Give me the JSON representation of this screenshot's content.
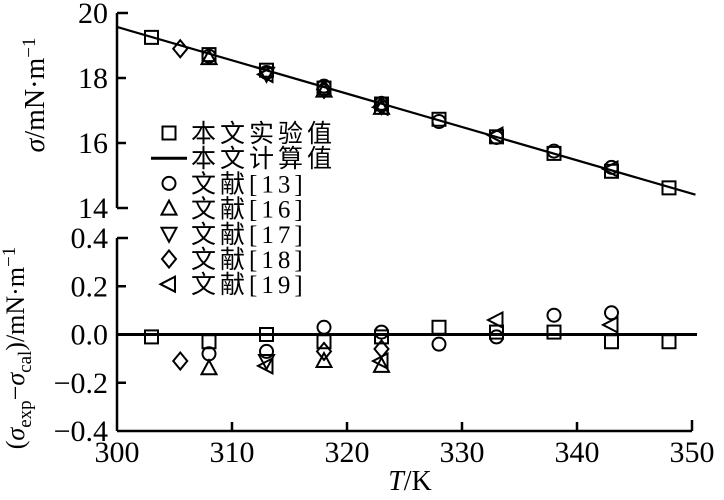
{
  "figure": {
    "bg": "#ffffff",
    "ink": "#000000"
  },
  "legend": {
    "items": [
      {
        "marker": "square",
        "label": "本文实验值"
      },
      {
        "marker": "line",
        "label": "本文计算值"
      },
      {
        "marker": "circle",
        "label": "文献[13]"
      },
      {
        "marker": "triangle-up",
        "label": "文献[16]"
      },
      {
        "marker": "triangle-down",
        "label": "文献[17]"
      },
      {
        "marker": "diamond",
        "label": "文献[18]"
      },
      {
        "marker": "triangle-left",
        "label": "文献[19]"
      }
    ]
  },
  "chart_data": {
    "type": "line+scatter",
    "xlabel_parts": [
      {
        "t": "T",
        "m": "i"
      },
      {
        "t": "/K",
        "m": "n"
      }
    ],
    "x_axis": {
      "min": 300,
      "max": 350,
      "ticks": [
        300,
        310,
        320,
        330,
        340,
        350
      ],
      "tick_labels": [
        "300",
        "310",
        "320",
        "330",
        "340",
        "350"
      ]
    },
    "panels": [
      {
        "id": "surface-tension",
        "ylabel_parts": [
          {
            "t": "σ",
            "m": "i"
          },
          {
            "t": "/mN·m",
            "m": "n"
          },
          {
            "t": "−1",
            "m": "sup"
          }
        ],
        "y_axis": {
          "min": 14,
          "max": 20,
          "ticks": [
            20,
            18,
            16,
            14
          ],
          "tick_labels": [
            "20",
            "18",
            "16",
            "14"
          ]
        },
        "line_series": {
          "name": "本文计算值",
          "x": [
            300,
            350.3
          ],
          "y": [
            19.57,
            14.41
          ]
        },
        "series": [
          {
            "name": "本文实验值",
            "marker": "square",
            "points": [
              [
                303,
                19.25
              ],
              [
                308,
                18.72
              ],
              [
                313,
                18.24
              ],
              [
                318,
                17.69
              ],
              [
                323,
                17.2
              ],
              [
                328,
                16.73
              ],
              [
                333,
                16.19
              ],
              [
                338,
                15.68
              ],
              [
                343,
                15.13
              ],
              [
                348,
                14.62
              ]
            ]
          },
          {
            "name": "文献[13]",
            "marker": "circle",
            "points": [
              [
                308,
                18.67
              ],
              [
                313,
                18.17
              ],
              [
                318,
                17.75
              ],
              [
                323,
                17.22
              ],
              [
                328,
                16.66
              ],
              [
                333,
                16.17
              ],
              [
                338,
                15.75
              ],
              [
                343,
                15.25
              ]
            ]
          },
          {
            "name": "文献[16]",
            "marker": "triangle-up",
            "points": [
              [
                308,
                18.61
              ],
              [
                318,
                17.61
              ],
              [
                323,
                17.08
              ]
            ]
          },
          {
            "name": "文献[17]",
            "marker": "triangle-down",
            "points": [
              [
                313,
                18.13
              ]
            ]
          },
          {
            "name": "文献[18]",
            "marker": "diamond",
            "points": [
              [
                305.5,
                18.9
              ],
              [
                318,
                17.65
              ],
              [
                323,
                17.15
              ]
            ]
          },
          {
            "name": "文献[19]",
            "marker": "triangle-left",
            "points": [
              [
                313,
                18.11
              ],
              [
                323,
                17.1
              ],
              [
                333,
                16.24
              ],
              [
                343,
                15.2
              ]
            ]
          }
        ]
      },
      {
        "id": "residuals",
        "ylabel_parts": [
          {
            "t": "(",
            "m": "n"
          },
          {
            "t": "σ",
            "m": "i"
          },
          {
            "t": "exp",
            "m": "sub"
          },
          {
            "t": "−",
            "m": "n"
          },
          {
            "t": "σ",
            "m": "i"
          },
          {
            "t": "cal",
            "m": "sub"
          },
          {
            "t": ")/mN·m",
            "m": "n"
          },
          {
            "t": "−1",
            "m": "sup"
          }
        ],
        "y_axis": {
          "min": -0.4,
          "max": 0.4,
          "ticks": [
            0.4,
            0.2,
            0.0,
            -0.2,
            -0.4
          ],
          "tick_labels": [
            "0.4",
            "0.2",
            "0.0",
            "−0.2",
            "−0.4"
          ]
        },
        "zero_line": true,
        "series": [
          {
            "name": "本文实验值",
            "marker": "square",
            "points": [
              [
                303,
                -0.01
              ],
              [
                308,
                -0.03
              ],
              [
                313,
                0.0
              ],
              [
                318,
                -0.03
              ],
              [
                323,
                -0.01
              ],
              [
                328,
                0.03
              ],
              [
                333,
                0.01
              ],
              [
                338,
                0.01
              ],
              [
                343,
                -0.03
              ],
              [
                348,
                -0.03
              ]
            ]
          },
          {
            "name": "文献[13]",
            "marker": "circle",
            "points": [
              [
                308,
                -0.08
              ],
              [
                313,
                -0.07
              ],
              [
                318,
                0.03
              ],
              [
                323,
                0.01
              ],
              [
                328,
                -0.04
              ],
              [
                333,
                -0.01
              ],
              [
                338,
                0.08
              ],
              [
                343,
                0.09
              ]
            ]
          },
          {
            "name": "文献[16]",
            "marker": "triangle-up",
            "points": [
              [
                308,
                -0.14
              ],
              [
                318,
                -0.11
              ],
              [
                323,
                -0.13
              ]
            ]
          },
          {
            "name": "文献[17]",
            "marker": "triangle-down",
            "points": [
              [
                313,
                -0.11
              ]
            ]
          },
          {
            "name": "文献[18]",
            "marker": "diamond",
            "points": [
              [
                305.5,
                -0.11
              ],
              [
                318,
                -0.07
              ],
              [
                323,
                -0.06
              ]
            ]
          },
          {
            "name": "文献[19]",
            "marker": "triangle-left",
            "points": [
              [
                313,
                -0.13
              ],
              [
                323,
                -0.11
              ],
              [
                333,
                0.06
              ],
              [
                343,
                0.04
              ]
            ]
          }
        ]
      }
    ]
  }
}
